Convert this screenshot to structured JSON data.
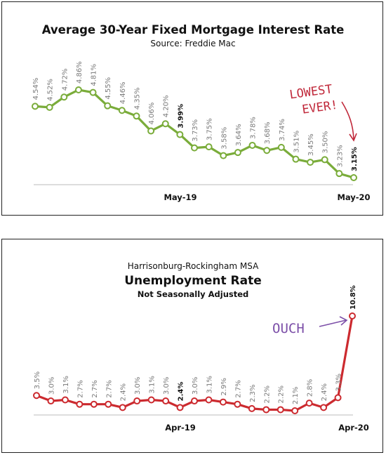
{
  "chart_data": [
    {
      "type": "line",
      "title": "Average 30-Year Fixed Mortgage Interest Rate",
      "subtitle": "Source: Freddie Mac",
      "x_tick_labels": [
        "May-19",
        "May-20"
      ],
      "values": [
        4.54,
        4.52,
        4.72,
        4.86,
        4.81,
        4.55,
        4.46,
        4.35,
        4.06,
        4.2,
        3.99,
        3.73,
        3.75,
        3.58,
        3.64,
        3.78,
        3.68,
        3.74,
        3.51,
        3.45,
        3.5,
        3.23,
        3.15
      ],
      "value_labels": [
        "4.54%",
        "4.52%",
        "4.72%",
        "4.86%",
        "4.81%",
        "4.55%",
        "4.46%",
        "4.35%",
        "4.06%",
        "4.20%",
        "3.99%",
        "3.73%",
        "3.75%",
        "3.58%",
        "3.64%",
        "3.78%",
        "3.68%",
        "3.74%",
        "3.51%",
        "3.45%",
        "3.50%",
        "3.23%",
        "3.15%"
      ],
      "highlight_labels": [
        10,
        22
      ],
      "annotation": [
        "LOWEST",
        "EVER!"
      ],
      "line_color": "#7aac3a",
      "annotation_color": "#c0283a",
      "grid": false
    },
    {
      "type": "line",
      "supertitle": "Harrisonburg-Rockingham MSA",
      "title": "Unemployment Rate",
      "subtitle": "Not Seasonally Adjusted",
      "x_tick_labels": [
        "Apr-19",
        "Apr-20"
      ],
      "values": [
        3.5,
        3.0,
        3.1,
        2.7,
        2.7,
        2.7,
        2.4,
        3.0,
        3.1,
        3.0,
        2.4,
        3.0,
        3.1,
        2.9,
        2.7,
        2.3,
        2.2,
        2.2,
        2.1,
        2.8,
        2.4,
        3.3,
        10.8
      ],
      "value_labels": [
        "3.5%",
        "3.0%",
        "3.1%",
        "2.7%",
        "2.7%",
        "2.7%",
        "2.4%",
        "3.0%",
        "3.1%",
        "3.0%",
        "2.4%",
        "3.0%",
        "3.1%",
        "2.9%",
        "2.7%",
        "2.3%",
        "2.2%",
        "2.2%",
        "2.1%",
        "2.8%",
        "2.4%",
        "3.3%",
        "10.8%"
      ],
      "highlight_labels": [
        10,
        22
      ],
      "annotation": "OUCH",
      "line_color": "#cc2a2f",
      "annotation_color": "#7c4fa8",
      "grid": false
    }
  ]
}
